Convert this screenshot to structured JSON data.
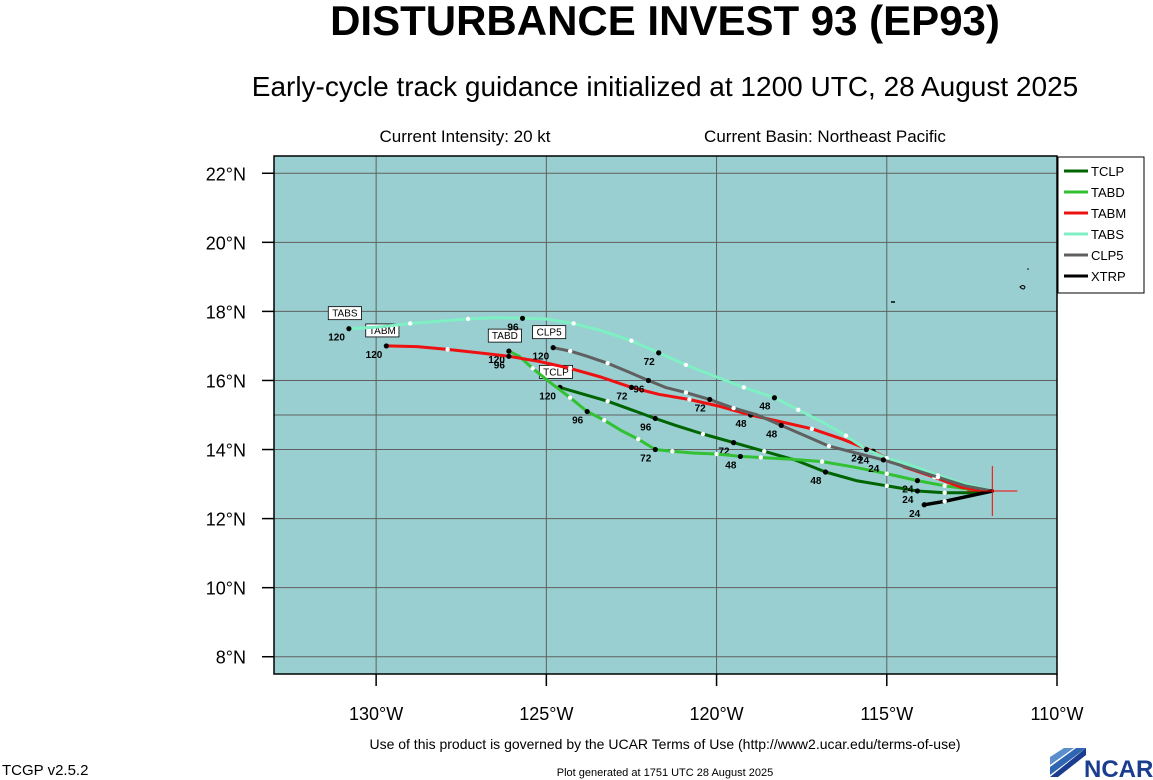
{
  "header": {
    "title": "DISTURBANCE INVEST 93 (EP93)",
    "subtitle": "Early-cycle track guidance initialized at 1200 UTC, 28 August 2025",
    "intensity": "Current Intensity: 20 kt",
    "basin": "Current Basin: Northeast Pacific"
  },
  "footer": {
    "terms": "Use of this product is governed by the UCAR Terms of Use (http://www2.ucar.edu/terms-of-use)",
    "generated": "Plot generated at 1751 UTC   28 August 2025",
    "version": "TCGP v2.5.2",
    "logo_text": "NCAR"
  },
  "colors": {
    "ocean": "#99cfd0",
    "grid": "#606060",
    "land": "#000000",
    "storm_marker": "#ff0000"
  },
  "chart_data": {
    "type": "line",
    "xlim": [
      -133,
      -110
    ],
    "ylim": [
      7.5,
      22.5
    ],
    "x_ticks": [
      -130,
      -125,
      -120,
      -115,
      -110
    ],
    "x_tick_labels": [
      "130°W",
      "125°W",
      "120°W",
      "115°W",
      "110°W"
    ],
    "y_ticks": [
      8,
      10,
      12,
      14,
      16,
      18,
      20,
      22
    ],
    "y_tick_labels": [
      "8°N",
      "10°N",
      "12°N",
      "14°N",
      "16°N",
      "18°N",
      "20°N",
      "22°N"
    ],
    "grid": true,
    "legend_position": "top-right",
    "initial_position": {
      "lon": -111.9,
      "lat": 12.8
    },
    "series": [
      {
        "name": "TCLP",
        "color": "#006400",
        "end_label": "TCLP",
        "points": [
          [
            -111.9,
            12.8
          ],
          [
            -112.6,
            12.75
          ],
          [
            -113.3,
            12.75
          ],
          [
            -114.1,
            12.8
          ],
          [
            -115.0,
            12.95
          ],
          [
            -115.9,
            13.1
          ],
          [
            -116.8,
            13.35
          ],
          [
            -117.7,
            13.7
          ],
          [
            -118.6,
            13.95
          ],
          [
            -119.5,
            14.2
          ],
          [
            -120.4,
            14.45
          ],
          [
            -121.2,
            14.7
          ],
          [
            -121.8,
            14.9
          ],
          [
            -122.5,
            15.15
          ],
          [
            -123.2,
            15.4
          ],
          [
            -123.9,
            15.6
          ],
          [
            -124.6,
            15.8
          ]
        ],
        "hour_marks": [
          {
            "h": "24",
            "i": 3
          },
          {
            "h": "48",
            "i": 6
          },
          {
            "h": "72",
            "i": 9
          },
          {
            "h": "96",
            "i": 12
          },
          {
            "h": "120",
            "i": 16
          }
        ]
      },
      {
        "name": "TABD",
        "color": "#33c133",
        "end_label": "TABD",
        "points": [
          [
            -111.9,
            12.8
          ],
          [
            -112.6,
            12.85
          ],
          [
            -113.3,
            12.95
          ],
          [
            -114.1,
            13.1
          ],
          [
            -115.0,
            13.3
          ],
          [
            -116.0,
            13.5
          ],
          [
            -116.9,
            13.65
          ],
          [
            -117.8,
            13.72
          ],
          [
            -118.7,
            13.77
          ],
          [
            -119.3,
            13.8
          ],
          [
            -120.0,
            13.87
          ],
          [
            -120.7,
            13.9
          ],
          [
            -121.3,
            13.95
          ],
          [
            -121.8,
            14.0
          ],
          [
            -122.3,
            14.3
          ],
          [
            -122.8,
            14.55
          ],
          [
            -123.3,
            14.85
          ],
          [
            -123.8,
            15.1
          ],
          [
            -124.3,
            15.5
          ],
          [
            -124.9,
            15.95
          ],
          [
            -125.4,
            16.35
          ],
          [
            -125.8,
            16.7
          ],
          [
            -126.1,
            16.85
          ]
        ],
        "hour_marks": [
          {
            "h": "24",
            "i": 3
          },
          {
            "h": "48",
            "i": 9
          },
          {
            "h": "72",
            "i": 13
          },
          {
            "h": "96",
            "i": 17
          },
          {
            "h": "120",
            "i": 22
          }
        ]
      },
      {
        "name": "TABM",
        "color": "#ee1111",
        "end_label": "TABM",
        "points": [
          [
            -111.9,
            12.8
          ],
          [
            -112.8,
            12.9
          ],
          [
            -113.6,
            13.2
          ],
          [
            -114.5,
            13.5
          ],
          [
            -115.4,
            13.95
          ],
          [
            -116.3,
            14.3
          ],
          [
            -117.2,
            14.6
          ],
          [
            -118.1,
            14.8
          ],
          [
            -119.0,
            15.0
          ],
          [
            -119.9,
            15.25
          ],
          [
            -120.8,
            15.45
          ],
          [
            -121.7,
            15.6
          ],
          [
            -122.5,
            15.8
          ],
          [
            -123.4,
            16.1
          ],
          [
            -124.3,
            16.35
          ],
          [
            -125.2,
            16.55
          ],
          [
            -126.1,
            16.7
          ],
          [
            -127.0,
            16.8
          ],
          [
            -127.9,
            16.9
          ],
          [
            -128.8,
            16.98
          ],
          [
            -129.7,
            17.0
          ]
        ],
        "hour_marks": [
          {
            "h": "24",
            "i": 4
          },
          {
            "h": "48",
            "i": 8
          },
          {
            "h": "72",
            "i": 12
          },
          {
            "h": "96",
            "i": 16
          },
          {
            "h": "120",
            "i": 20
          }
        ]
      },
      {
        "name": "TABS",
        "color": "#7fefc4",
        "end_label": "TABS",
        "points": [
          [
            -111.9,
            12.8
          ],
          [
            -112.7,
            13.0
          ],
          [
            -113.5,
            13.25
          ],
          [
            -114.3,
            13.55
          ],
          [
            -115.0,
            13.75
          ],
          [
            -115.6,
            14.0
          ],
          [
            -116.2,
            14.4
          ],
          [
            -116.9,
            14.8
          ],
          [
            -117.6,
            15.15
          ],
          [
            -118.3,
            15.5
          ],
          [
            -119.2,
            15.8
          ],
          [
            -120.0,
            16.1
          ],
          [
            -120.9,
            16.45
          ],
          [
            -121.7,
            16.8
          ],
          [
            -122.5,
            17.15
          ],
          [
            -123.4,
            17.45
          ],
          [
            -124.2,
            17.65
          ],
          [
            -125.0,
            17.78
          ],
          [
            -125.7,
            17.8
          ],
          [
            -126.5,
            17.82
          ],
          [
            -127.3,
            17.78
          ],
          [
            -128.1,
            17.72
          ],
          [
            -129.0,
            17.65
          ],
          [
            -129.9,
            17.55
          ],
          [
            -130.8,
            17.5
          ]
        ],
        "hour_marks": [
          {
            "h": "24",
            "i": 5
          },
          {
            "h": "48",
            "i": 9
          },
          {
            "h": "72",
            "i": 13
          },
          {
            "h": "96",
            "i": 18
          },
          {
            "h": "120",
            "i": 24
          }
        ]
      },
      {
        "name": "CLP5",
        "color": "#606060",
        "end_label": "CLP5",
        "points": [
          [
            -111.9,
            12.8
          ],
          [
            -112.7,
            12.95
          ],
          [
            -113.5,
            13.2
          ],
          [
            -114.3,
            13.45
          ],
          [
            -115.1,
            13.7
          ],
          [
            -115.9,
            13.9
          ],
          [
            -116.7,
            14.1
          ],
          [
            -117.4,
            14.4
          ],
          [
            -118.1,
            14.7
          ],
          [
            -118.8,
            15.0
          ],
          [
            -119.5,
            15.2
          ],
          [
            -120.2,
            15.45
          ],
          [
            -120.9,
            15.65
          ],
          [
            -121.5,
            15.8
          ],
          [
            -122.0,
            16.0
          ],
          [
            -122.6,
            16.25
          ],
          [
            -123.2,
            16.5
          ],
          [
            -123.8,
            16.7
          ],
          [
            -124.3,
            16.85
          ],
          [
            -124.8,
            16.95
          ]
        ],
        "hour_marks": [
          {
            "h": "24",
            "i": 4
          },
          {
            "h": "48",
            "i": 8
          },
          {
            "h": "72",
            "i": 11
          },
          {
            "h": "96",
            "i": 14
          },
          {
            "h": "120",
            "i": 19
          }
        ]
      },
      {
        "name": "XTRP",
        "color": "#000000",
        "end_label": "",
        "points": [
          [
            -111.9,
            12.8
          ],
          [
            -112.6,
            12.65
          ],
          [
            -113.3,
            12.5
          ],
          [
            -113.9,
            12.4
          ]
        ],
        "hour_marks": [
          {
            "h": "24",
            "i": 3
          }
        ]
      }
    ]
  }
}
